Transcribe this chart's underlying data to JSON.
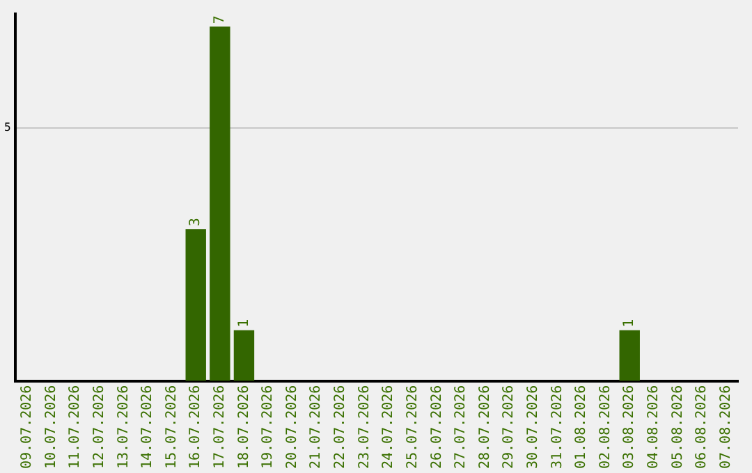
{
  "chart_data": {
    "type": "bar",
    "categories": [
      "09.07.2026",
      "10.07.2026",
      "11.07.2026",
      "12.07.2026",
      "13.07.2026",
      "14.07.2026",
      "15.07.2026",
      "16.07.2026",
      "17.07.2026",
      "18.07.2026",
      "19.07.2026",
      "20.07.2026",
      "21.07.2026",
      "22.07.2026",
      "23.07.2026",
      "24.07.2026",
      "25.07.2026",
      "26.07.2026",
      "27.07.2026",
      "28.07.2026",
      "29.07.2026",
      "30.07.2026",
      "31.07.2026",
      "01.08.2026",
      "02.08.2026",
      "03.08.2026",
      "04.08.2026",
      "05.08.2026",
      "06.08.2026",
      "07.08.2026"
    ],
    "values": [
      0,
      0,
      0,
      0,
      0,
      0,
      0,
      3,
      7,
      1,
      0,
      0,
      0,
      0,
      0,
      0,
      0,
      0,
      0,
      0,
      0,
      0,
      0,
      0,
      0,
      1,
      0,
      0,
      0,
      0
    ],
    "value_labels": [
      null,
      null,
      null,
      null,
      null,
      null,
      null,
      "3",
      "7",
      "1",
      null,
      null,
      null,
      null,
      null,
      null,
      null,
      null,
      null,
      null,
      null,
      null,
      null,
      null,
      null,
      "1",
      null,
      null,
      null,
      null
    ],
    "color": "#336600",
    "ylim": [
      0,
      7.25
    ],
    "yticks": [
      5
    ],
    "grid": "y",
    "legend": false
  }
}
